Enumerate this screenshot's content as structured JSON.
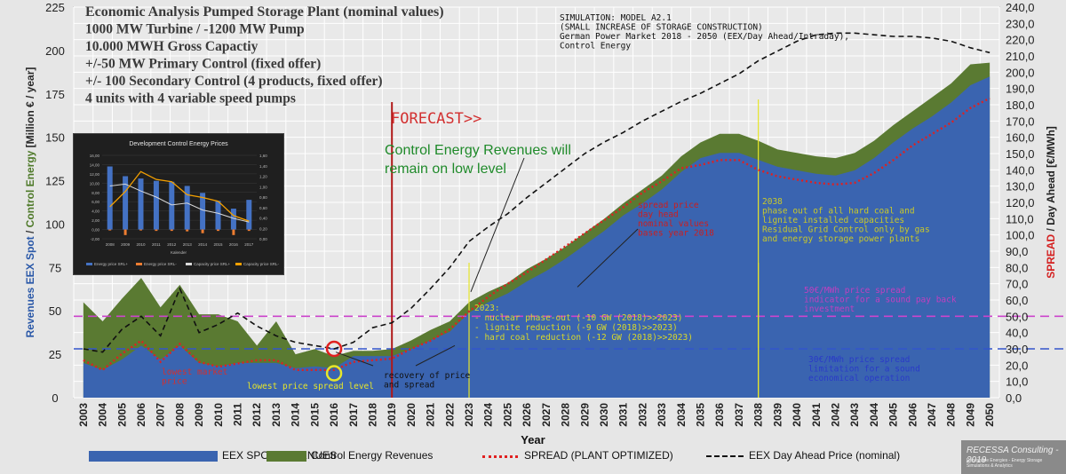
{
  "title_lines": [
    "Economic Analysis Pumped Storage Plant  (nominal values)",
    "1000 MW Turbine / -1200 MW Pump",
    "10.000 MWH Gross Capactiy",
    "+/-50 MW Primary Control   (fixed offer)",
    "+/- 100 Secondary Control (4 products, fixed offer)",
    "4 units with 4 variable speed pumps"
  ],
  "simulation_lines": [
    "SIMULATION: MODEL   A2.1",
    "(SMALL INCREASE OF STORAGE CONSTRUCTION)",
    "German Power Market 2018 - 2050 (EEX/Day Ahead/Intraday),",
    "Control Energy"
  ],
  "forecast_label": "FORECAST>>",
  "control_energy_note": [
    "Control Energy Revenues will",
    "remain on low level"
  ],
  "spread_note": [
    "spread price",
    "day head",
    "nominal values",
    "bases year 2018"
  ],
  "note_2038": [
    "2038",
    "phase out of all hard coal and",
    "lignite installed capacities",
    "Residual Grid Control only by gas",
    "and energy storage power plants"
  ],
  "note_2023": [
    "2023:",
    "-  nuclear phase-out (-10 GW (2018)>>2023)",
    "-  lignite reduction (-9 GW (2018)>>2023)",
    "-  hard coal reduction (-12 GW (2018)>>2023)"
  ],
  "note_50": [
    "50€/MWh price spread",
    "indicator for a sound pay back",
    "investment"
  ],
  "note_30": [
    "30€/MWh price spread",
    "limitation for a sound",
    "economical operation"
  ],
  "lowest_market": [
    "lowest market",
    "price"
  ],
  "lowest_spread": "lowest price spread level",
  "recovery_note": [
    "recovery of price",
    "and spread"
  ],
  "inset": {
    "title": "Development Control Energy Prices",
    "x_title": "Kalender",
    "y_left_ticks": [
      "16,00",
      "14,00",
      "12,00",
      "10,00",
      "8,00",
      "6,00",
      "4,00",
      "2,00",
      "0,00",
      "-2,00"
    ],
    "y_right_ticks": [
      "1,60",
      "1,40",
      "1,20",
      "1,00",
      "0,80",
      "0,60",
      "0,40",
      "0,20",
      "0,00"
    ],
    "categories": [
      "2008",
      "2009",
      "2010",
      "2011",
      "2012",
      "2013",
      "2014",
      "2015",
      "2016",
      "2017"
    ],
    "bars": [
      13.6,
      11.5,
      11.0,
      10.5,
      10.3,
      9.4,
      7.9,
      6.2,
      4.5,
      6.4
    ],
    "neg_bars": [
      -0.2,
      -1.2,
      -0.2,
      -0.3,
      -0.3,
      -0.4,
      -0.8,
      -0.3,
      -1.2,
      -0.3
    ],
    "line_white": [
      9.4,
      9.8,
      8.3,
      7.0,
      5.3,
      5.7,
      4.2,
      3.5,
      2.4,
      1.6
    ],
    "line_orange": [
      4.9,
      8.2,
      12.5,
      10.8,
      10.3,
      7.5,
      6.9,
      6.1,
      3.0,
      1.8
    ],
    "legend": [
      "Energy price SRL+",
      "Energy price SRL-",
      "Capacity price SRL+",
      "Capacity price SRL-"
    ],
    "colors": {
      "bars": "#4472c4",
      "neg": "#ed7d31",
      "white": "#d9d9d9",
      "orange": "#f4a000"
    }
  },
  "legend": [
    "EEX SPOT REVENUES",
    "Control Energy Revenues",
    "SPREAD (PLANT OPTIMIZED)",
    "EEX Day Ahead Price (nominal)"
  ],
  "branding": {
    "name": "RECESSA Consulting - 2019",
    "tagline": "Renewable Energies - Energy Storage Simulations & Analytics"
  },
  "chart_data": {
    "type": "area",
    "title": "Economic Analysis Pumped Storage Plant  (nominal values)",
    "xlabel": "Year",
    "ylabel_left": [
      "Revenues EEX Spot",
      " / ",
      "Control Energy",
      "  [Million € / year]"
    ],
    "ylabel_right": [
      "SPREAD",
      " / ",
      "Day Ahead",
      "  [€/MWh]"
    ],
    "ylim_left": [
      0,
      225
    ],
    "ylim_right": [
      0,
      240
    ],
    "left_ticks": [
      0,
      25,
      50,
      75,
      100,
      125,
      150,
      175,
      200,
      225
    ],
    "right_ticks": [
      "0,0",
      "10,0",
      "20,0",
      "30,0",
      "40,0",
      "50,0",
      "60,0",
      "70,0",
      "80,0",
      "90,0",
      "100,0",
      "110,0",
      "120,0",
      "130,0",
      "140,0",
      "150,0",
      "160,0",
      "170,0",
      "180,0",
      "190,0",
      "200,0",
      "210,0",
      "220,0",
      "230,0",
      "240,0"
    ],
    "x": [
      "2003",
      "2004",
      "2005",
      "2006",
      "2007",
      "2008",
      "2009",
      "2010",
      "2011",
      "2012",
      "2013",
      "2014",
      "2015",
      "2016",
      "2017",
      "2018",
      "2019",
      "2020",
      "2021",
      "2022",
      "2023",
      "2024",
      "2025",
      "2026",
      "2027",
      "2028",
      "2029",
      "2030",
      "2031",
      "2032",
      "2033",
      "2034",
      "2035",
      "2036",
      "2037",
      "2038",
      "2039",
      "2040",
      "2041",
      "2042",
      "2043",
      "2044",
      "2045",
      "2046",
      "2047",
      "2048",
      "2049",
      "2050"
    ],
    "series": [
      {
        "name": "EEX SPOT REVENUES",
        "axis": "left",
        "color": "#3a64b0",
        "values": [
          20,
          16,
          22,
          30,
          22,
          30,
          20,
          18,
          20,
          20,
          20,
          17,
          18,
          17,
          24,
          24,
          24,
          28,
          33,
          38,
          49,
          55,
          60,
          67,
          73,
          80,
          88,
          96,
          105,
          112,
          120,
          130,
          138,
          141,
          141,
          137,
          133,
          131,
          129,
          128,
          131,
          138,
          147,
          155,
          162,
          170,
          180,
          185
        ]
      },
      {
        "name": "Control Energy Revenues",
        "axis": "left",
        "color": "#5a7a32",
        "stacked_on": "EEX SPOT REVENUES",
        "values": [
          35,
          28,
          35,
          39,
          30,
          35,
          28,
          30,
          24,
          10,
          24,
          8,
          10,
          7,
          3,
          3,
          4,
          5,
          6,
          6,
          6,
          6,
          6,
          7,
          7,
          7,
          7,
          7,
          7,
          8,
          8,
          9,
          9,
          11,
          11,
          11,
          10,
          10,
          10,
          10,
          10,
          10,
          10,
          10,
          11,
          11,
          12,
          8
        ]
      },
      {
        "name": "SPREAD (PLANT OPTIMIZED)",
        "axis": "right",
        "color": "#e02020",
        "style": "dotted",
        "values": [
          23,
          17,
          27,
          35,
          22,
          33,
          22,
          19,
          21,
          23,
          23,
          17,
          17,
          17,
          22,
          23,
          24,
          30,
          35,
          42,
          53,
          62,
          70,
          77,
          85,
          93,
          101,
          109,
          117,
          126,
          133,
          141,
          143,
          146,
          146,
          140,
          136,
          134,
          132,
          131,
          132,
          138,
          146,
          155,
          162,
          169,
          178,
          184
        ]
      },
      {
        "name": "EEX Day Ahead Price (nominal)",
        "axis": "right",
        "color": "#111111",
        "style": "dashed",
        "values": [
          30,
          28,
          42,
          50,
          38,
          67,
          40,
          45,
          52,
          44,
          38,
          34,
          32,
          30,
          34,
          43,
          46,
          55,
          67,
          80,
          96,
          105,
          113,
          123,
          132,
          141,
          150,
          157,
          163,
          170,
          176,
          182,
          187,
          193,
          199,
          207,
          213,
          219,
          223,
          224,
          224,
          223,
          222,
          222,
          221,
          219,
          215,
          212
        ]
      }
    ],
    "reference_lines": [
      {
        "value": 50,
        "axis": "right",
        "color": "#cc44cc"
      },
      {
        "value": 30,
        "axis": "right",
        "color": "#3355cc"
      }
    ],
    "markers": [
      {
        "year": "2019",
        "type": "vertical-line",
        "color": "#b01818"
      },
      {
        "year": "2023",
        "type": "vertical-line",
        "color": "#e6e62a"
      },
      {
        "year": "2038",
        "type": "vertical-line",
        "color": "#e6e62a"
      }
    ],
    "grid": true
  }
}
